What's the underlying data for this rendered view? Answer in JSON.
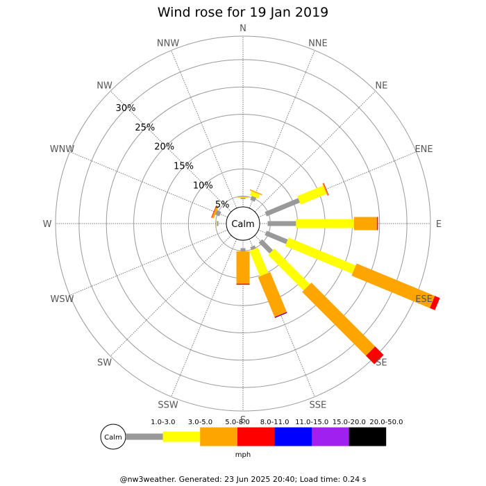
{
  "chart_data": {
    "type": "windrose",
    "title": "Wind rose for 19 Jan 2019",
    "directions": [
      "N",
      "NNE",
      "NE",
      "ENE",
      "E",
      "ESE",
      "SE",
      "SSE",
      "S",
      "SSW",
      "SW",
      "WSW",
      "W",
      "WNW",
      "NW",
      "NNW"
    ],
    "ring_labels": [
      "5%",
      "10%",
      "15%",
      "20%",
      "25%",
      "30%"
    ],
    "ring_values": [
      5,
      10,
      15,
      20,
      25,
      30
    ],
    "calm_label": "Calm",
    "unit": "mph",
    "speed_bins": [
      {
        "label": "1.0-3.0",
        "color": "#999999"
      },
      {
        "label": "3.0-5.0",
        "color": "#ffff00"
      },
      {
        "label": "5.0-8.0",
        "color": "#ffa500"
      },
      {
        "label": "8.0-11.0",
        "color": "#ff0000"
      },
      {
        "label": "11.0-15.0",
        "color": "#0000ff"
      },
      {
        "label": "15.0-20.0",
        "color": "#a020f0"
      },
      {
        "label": "20.0-50.0",
        "color": "#000000"
      }
    ],
    "calm_percent": 4.5,
    "cumulative_percent": [
      [
        0.2,
        0.3,
        0.4,
        0.4,
        0.4,
        0.4,
        0.4
      ],
      [
        0.8,
        1.6,
        1.8,
        1.8,
        1.8,
        1.8,
        1.8
      ],
      [
        0,
        0,
        0,
        0,
        0,
        0,
        0
      ],
      [
        6.6,
        11.7,
        11.9,
        12.0,
        12.0,
        12.0,
        12.0
      ],
      [
        5.2,
        15.8,
        20.0,
        20.2,
        20.2,
        20.2,
        20.2
      ],
      [
        4.2,
        17.5,
        33.0,
        34.0,
        34.0,
        34.0,
        34.0
      ],
      [
        2.8,
        12.0,
        28.5,
        30.7,
        30.7,
        30.7,
        30.7
      ],
      [
        0.6,
        5.6,
        13.5,
        13.6,
        13.7,
        13.7,
        13.7
      ],
      [
        0.6,
        0.6,
        6.5,
        6.7,
        6.7,
        6.7,
        6.7
      ],
      [
        0,
        0,
        0,
        0,
        0,
        0,
        0
      ],
      [
        0,
        0,
        0,
        0,
        0,
        0,
        0
      ],
      [
        0,
        0,
        0,
        0,
        0,
        0,
        0
      ],
      [
        0.3,
        0.4,
        0.4,
        0.4,
        0.4,
        0.4,
        0.4
      ],
      [
        0.8,
        0.8,
        1.2,
        1.3,
        1.3,
        1.3,
        1.3
      ],
      [
        0,
        0,
        0,
        0,
        0,
        0,
        0
      ],
      [
        0,
        0,
        0,
        0,
        0,
        0,
        0
      ]
    ]
  },
  "footer_text": "@nw3weather. Generated: 23 Jun 2025 20:40; Load time: 0.24 s"
}
